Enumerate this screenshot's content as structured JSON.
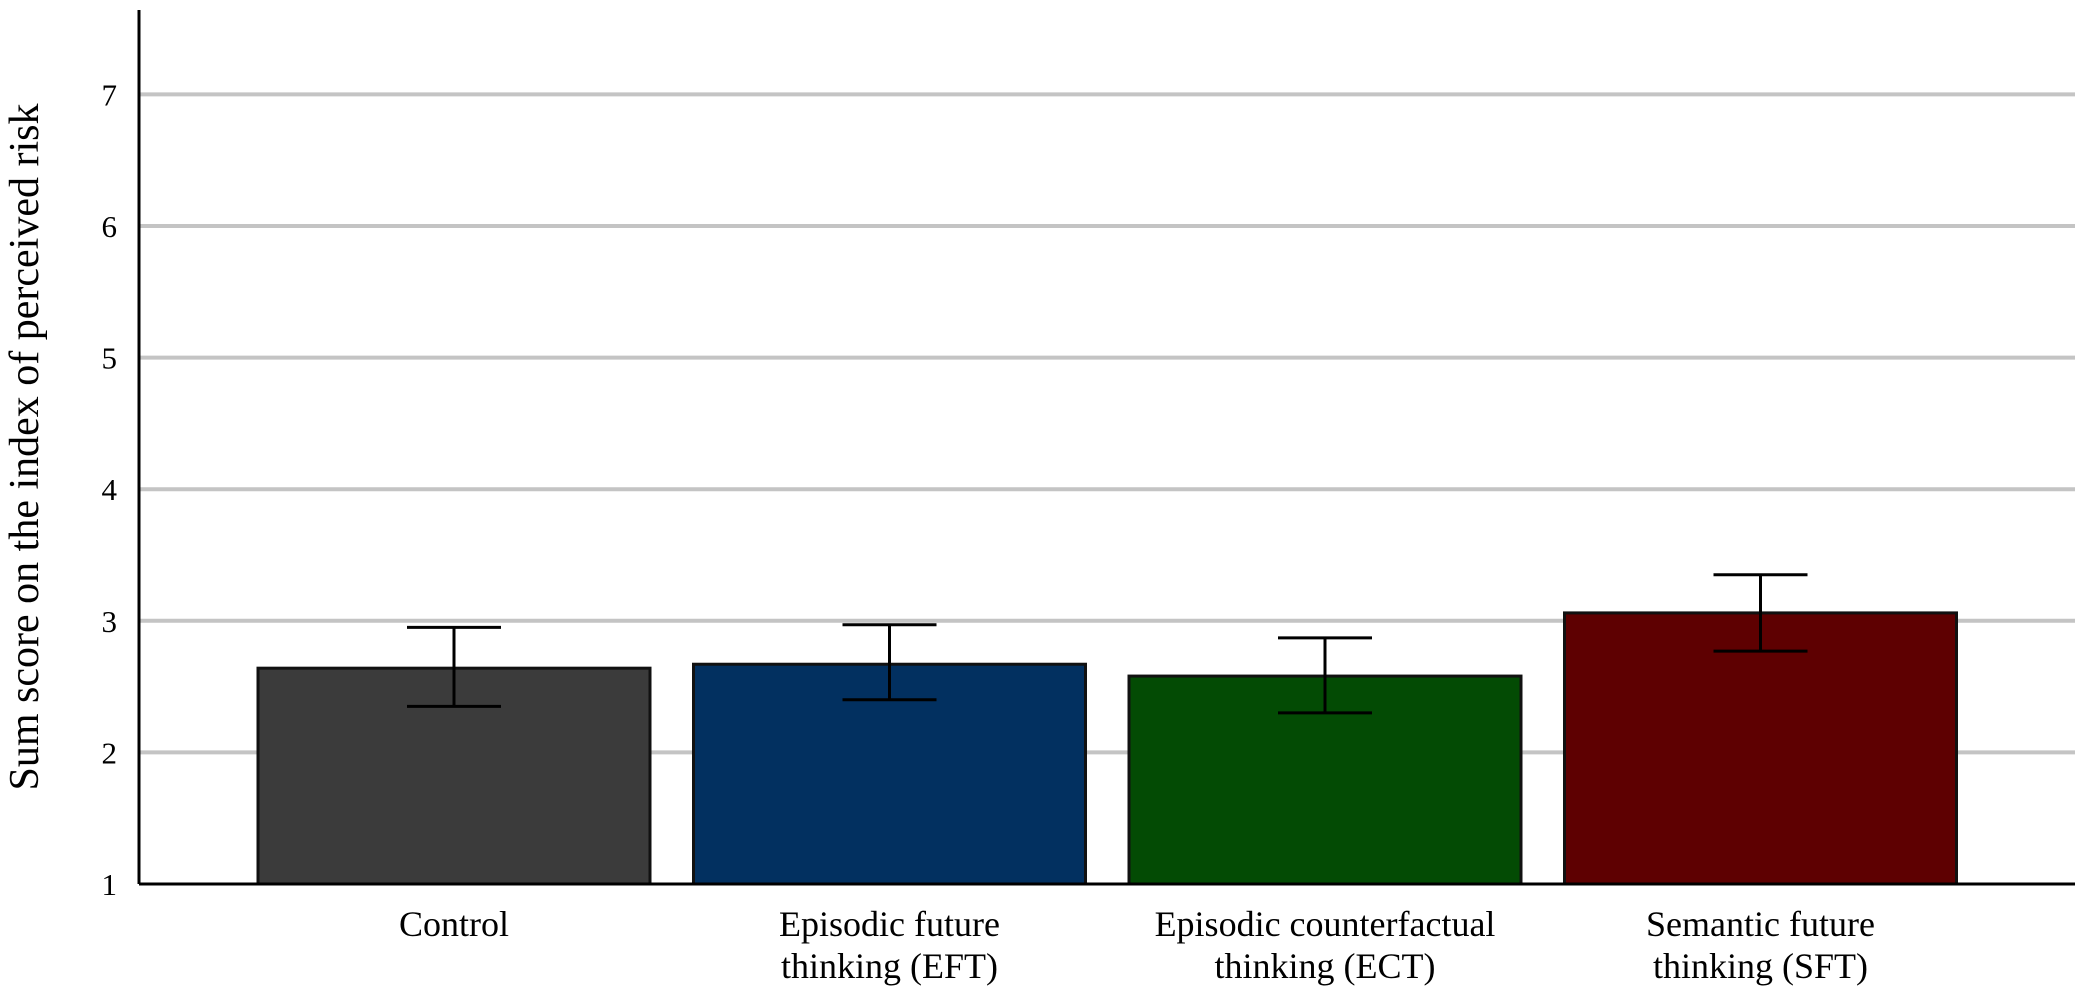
{
  "chart_data": {
    "type": "bar",
    "title": "",
    "xlabel": "",
    "ylabel": "Sum score on the index of perceived risk",
    "ylim": [
      1,
      7.65
    ],
    "yticks": [
      1,
      2,
      3,
      4,
      5,
      6,
      7
    ],
    "grid": true,
    "categories": [
      [
        "Control"
      ],
      [
        "Episodic future",
        "thinking (EFT)"
      ],
      [
        "Episodic counterfactual",
        "thinking (ECT)"
      ],
      [
        "Semantic future",
        "thinking (SFT)"
      ]
    ],
    "values": [
      2.64,
      2.67,
      2.58,
      3.06
    ],
    "error_low": [
      2.35,
      2.4,
      2.3,
      2.77
    ],
    "error_high": [
      2.95,
      2.97,
      2.87,
      3.35
    ],
    "colors": [
      "#3b3b3b",
      "#023060",
      "#034b04",
      "#5e0001"
    ]
  }
}
